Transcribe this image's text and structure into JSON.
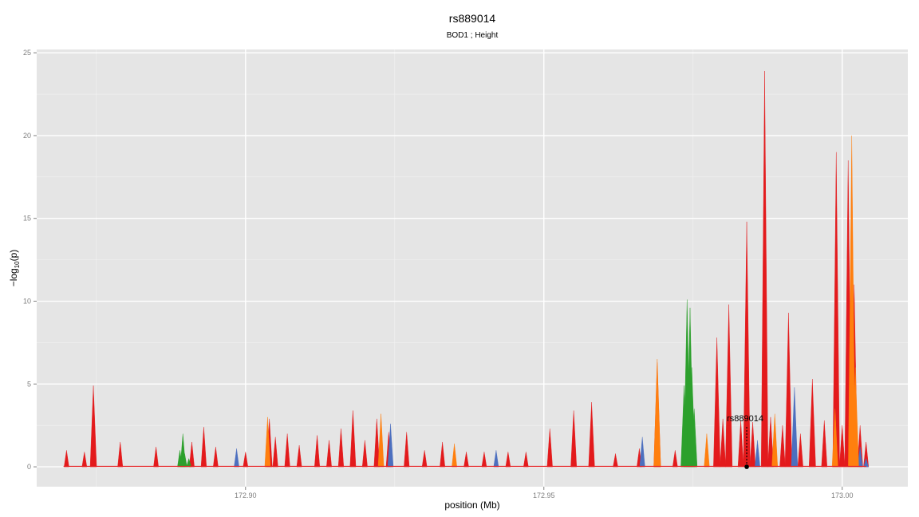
{
  "chart_data": {
    "type": "area",
    "title": "rs889014",
    "subtitle": "BOD1 ; Height",
    "xlabel": "position (Mb)",
    "ylabel_parts": {
      "base": "−log",
      "sub": "10",
      "rest": "(p)"
    },
    "xlim": [
      172.865,
      173.011
    ],
    "ylim": [
      -1.2,
      25.2
    ],
    "xticks": [
      172.9,
      172.95,
      173.0
    ],
    "xtick_labels": [
      "172.90",
      "172.95",
      "173.00"
    ],
    "yticks": [
      0,
      5,
      10,
      15,
      20,
      25
    ],
    "ytick_labels": [
      "0",
      "5",
      "10",
      "15",
      "20",
      "25"
    ],
    "grid": true,
    "background": "#e5e5e5",
    "ld_colors": {
      "high": "#2ca02c",
      "mid": "#ff7f0e",
      "low": "#4c6fbf",
      "none": "#e31a1c"
    },
    "annotation": {
      "label": "rs889014",
      "x": 172.984,
      "y": 0
    },
    "series": [
      {
        "ld": "high",
        "points": [
          [
            172.889,
            1.0
          ],
          [
            172.8895,
            2.0
          ],
          [
            172.8898,
            0.8
          ],
          [
            172.8905,
            0.5
          ],
          [
            172.9735,
            4.9
          ],
          [
            172.974,
            10.1
          ],
          [
            172.9745,
            9.6
          ],
          [
            172.9748,
            6.0
          ],
          [
            172.9752,
            3.5
          ]
        ]
      },
      {
        "ld": "mid",
        "points": [
          [
            172.9037,
            3.0
          ],
          [
            172.9227,
            3.2
          ],
          [
            172.935,
            1.4
          ],
          [
            172.969,
            6.5
          ],
          [
            172.9773,
            2.0
          ],
          [
            172.9887,
            3.2
          ],
          [
            172.9988,
            3.5
          ],
          [
            173.0016,
            20.0
          ],
          [
            173.0022,
            6.0
          ]
        ]
      },
      {
        "ld": "low",
        "points": [
          [
            172.8985,
            1.1
          ],
          [
            172.9243,
            2.6
          ],
          [
            172.942,
            1.0
          ],
          [
            172.9665,
            1.8
          ],
          [
            172.9858,
            1.6
          ],
          [
            172.992,
            4.8
          ],
          [
            173.003,
            1.2
          ],
          [
            173.004,
            0.5
          ]
        ]
      },
      {
        "ld": "none",
        "points": [
          [
            172.87,
            1.0
          ],
          [
            172.873,
            0.9
          ],
          [
            172.8745,
            4.9
          ],
          [
            172.879,
            1.5
          ],
          [
            172.885,
            1.2
          ],
          [
            172.891,
            1.5
          ],
          [
            172.893,
            2.4
          ],
          [
            172.895,
            1.2
          ],
          [
            172.9,
            0.9
          ],
          [
            172.904,
            2.9
          ],
          [
            172.905,
            1.8
          ],
          [
            172.907,
            2.0
          ],
          [
            172.909,
            1.3
          ],
          [
            172.912,
            1.9
          ],
          [
            172.914,
            1.6
          ],
          [
            172.916,
            2.3
          ],
          [
            172.918,
            3.4
          ],
          [
            172.92,
            1.6
          ],
          [
            172.922,
            2.9
          ],
          [
            172.924,
            2.1
          ],
          [
            172.927,
            2.1
          ],
          [
            172.93,
            1.0
          ],
          [
            172.933,
            1.5
          ],
          [
            172.937,
            0.9
          ],
          [
            172.94,
            0.9
          ],
          [
            172.944,
            0.9
          ],
          [
            172.947,
            0.9
          ],
          [
            172.951,
            2.3
          ],
          [
            172.955,
            3.4
          ],
          [
            172.958,
            3.9
          ],
          [
            172.962,
            0.8
          ],
          [
            172.966,
            1.1
          ],
          [
            172.969,
            6.3
          ],
          [
            172.972,
            1.0
          ],
          [
            172.979,
            7.8
          ],
          [
            172.98,
            2.9
          ],
          [
            172.981,
            9.8
          ],
          [
            172.983,
            2.8
          ],
          [
            172.984,
            14.8
          ],
          [
            172.985,
            2.7
          ],
          [
            172.987,
            23.9
          ],
          [
            172.988,
            3.0
          ],
          [
            172.99,
            2.5
          ],
          [
            172.991,
            9.3
          ],
          [
            172.993,
            2.0
          ],
          [
            172.995,
            5.3
          ],
          [
            172.997,
            2.8
          ],
          [
            172.999,
            19.0
          ],
          [
            173.0,
            2.5
          ],
          [
            173.001,
            18.5
          ],
          [
            173.002,
            11.0
          ],
          [
            173.003,
            2.5
          ],
          [
            173.004,
            1.5
          ]
        ]
      }
    ]
  }
}
